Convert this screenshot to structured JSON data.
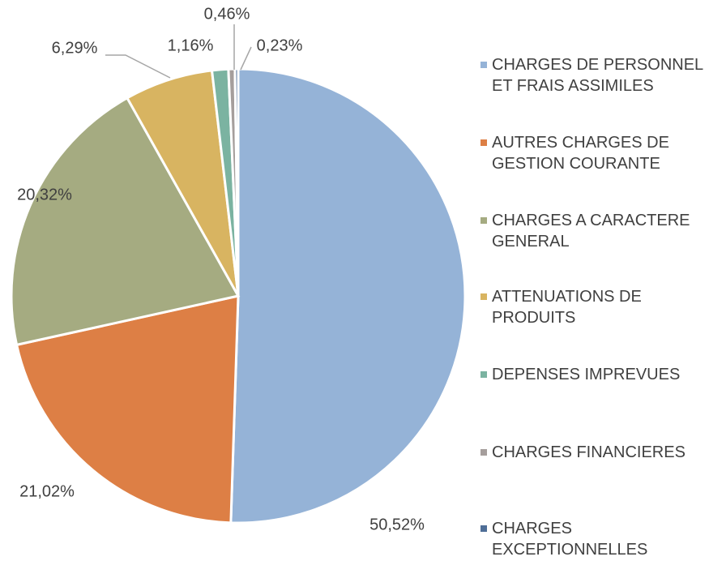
{
  "chart_data": {
    "type": "pie",
    "categories": [
      "CHARGES DE PERSONNEL ET FRAIS ASSIMILES",
      "AUTRES CHARGES DE GESTION COURANTE",
      "CHARGES A CARACTERE GENERAL",
      "ATTENUATIONS DE PRODUITS",
      "DEPENSES IMPREVUES",
      "CHARGES FINANCIERES",
      "CHARGES EXCEPTIONNELLES"
    ],
    "values": [
      50.52,
      21.02,
      20.32,
      6.29,
      1.16,
      0.46,
      0.23
    ],
    "value_labels": [
      "50,52%",
      "21,02%",
      "20,32%",
      "6,29%",
      "1,16%",
      "0,46%",
      "0,23%"
    ],
    "colors": [
      "#95b3d7",
      "#dd7f45",
      "#a5ab81",
      "#d8b461",
      "#7bb3a1",
      "#a59e9c",
      "#4f6e97"
    ],
    "legend": "right"
  }
}
